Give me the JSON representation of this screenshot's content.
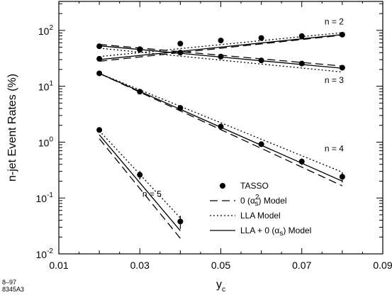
{
  "chart_data": {
    "type": "line",
    "ylabel": "n-jet Event Rates (%)",
    "xlabel_base": "y",
    "xlabel_sub": "c",
    "x_ticks": [
      0.01,
      0.03,
      0.05,
      0.07,
      0.09
    ],
    "x_tick_labels": [
      "0.01",
      "0.03",
      "0.05",
      "0.07",
      "0.09"
    ],
    "y_log": true,
    "y_ticks": [
      {
        "value": 0.01,
        "base": "10",
        "exp": "-2"
      },
      {
        "value": 0.1,
        "base": "10",
        "exp": "-1"
      },
      {
        "value": 1,
        "base": "10",
        "exp": "0"
      },
      {
        "value": 10,
        "base": "10",
        "exp": "1"
      },
      {
        "value": 100,
        "base": "10",
        "exp": "2"
      }
    ],
    "xlim": [
      0.01,
      0.09
    ],
    "ylim": [
      0.01,
      330
    ],
    "x_minor_step": 0.01,
    "annotations": [
      {
        "text": "n = 2",
        "x": 0.078,
        "y": 128
      },
      {
        "text": "n = 3",
        "x": 0.078,
        "y": 11.5
      },
      {
        "text": "n = 4",
        "x": 0.078,
        "y": 0.68
      },
      {
        "text": "n = 5",
        "x": 0.033,
        "y": 0.105
      }
    ],
    "legend": {
      "position": "lower-right",
      "entries": [
        {
          "key": "tasso",
          "label": "TASSO",
          "style": "marker"
        },
        {
          "key": "oas2",
          "label_pre": "0 (",
          "label_alpha": "α",
          "label_sub": "s",
          "label_sup": "2",
          "label_post": ") Model",
          "style": "dashed"
        },
        {
          "key": "lla",
          "label": "LLA Model",
          "style": "dotted"
        },
        {
          "key": "llaoas",
          "label_pre": "LLA + 0 (",
          "label_alpha": "α",
          "label_sub": "s",
          "label_post": ") Model",
          "style": "solid"
        }
      ]
    },
    "data_points": {
      "name": "TASSO",
      "x": [
        0.02,
        0.03,
        0.04,
        0.05,
        0.06,
        0.07,
        0.08
      ],
      "n2": [
        31,
        46,
        58,
        66,
        73,
        79,
        84
      ],
      "n3": [
        52,
        45,
        40,
        34,
        29,
        25.5,
        21.5
      ],
      "n4": [
        17,
        8,
        4.1,
        1.9,
        0.92,
        0.45,
        0.24
      ],
      "n5": [
        1.65,
        0.26,
        0.038
      ]
    },
    "errors": {
      "n4": [
        0.6,
        0.3,
        0.2,
        0.1,
        0.1,
        0.06,
        0.05
      ],
      "n5": [
        0.15,
        0.045,
        0.01
      ]
    },
    "curves": {
      "dashed": {
        "n2": {
          "x": [
            0.02,
            0.08
          ],
          "y": [
            28,
            82
          ]
        },
        "n3": {
          "x": [
            0.02,
            0.08
          ],
          "y": [
            56,
            23
          ]
        },
        "n4": {
          "x": [
            0.02,
            0.08
          ],
          "y": [
            17,
            0.165
          ]
        },
        "n5": {
          "x": [
            0.02,
            0.04
          ],
          "y": [
            1.15,
            0.019
          ]
        }
      },
      "dotted": {
        "n2": {
          "x": [
            0.02,
            0.08
          ],
          "y": [
            34,
            91
          ]
        },
        "n3": {
          "x": [
            0.02,
            0.08
          ],
          "y": [
            48,
            18
          ]
        },
        "n4": {
          "x": [
            0.02,
            0.08
          ],
          "y": [
            17,
            0.29
          ]
        },
        "n5": {
          "x": [
            0.02,
            0.04
          ],
          "y": [
            1.6,
            0.044
          ]
        }
      },
      "solid": {
        "n2": {
          "x": [
            0.02,
            0.08
          ],
          "y": [
            30,
            84
          ]
        },
        "n3": {
          "x": [
            0.02,
            0.08
          ],
          "y": [
            53,
            21
          ]
        },
        "n4": {
          "x": [
            0.02,
            0.08
          ],
          "y": [
            17,
            0.2
          ]
        },
        "n5": {
          "x": [
            0.02,
            0.04
          ],
          "y": [
            1.35,
            0.026
          ]
        }
      }
    }
  },
  "figure_code": {
    "line1": "8–97",
    "line2": "8345A3"
  }
}
